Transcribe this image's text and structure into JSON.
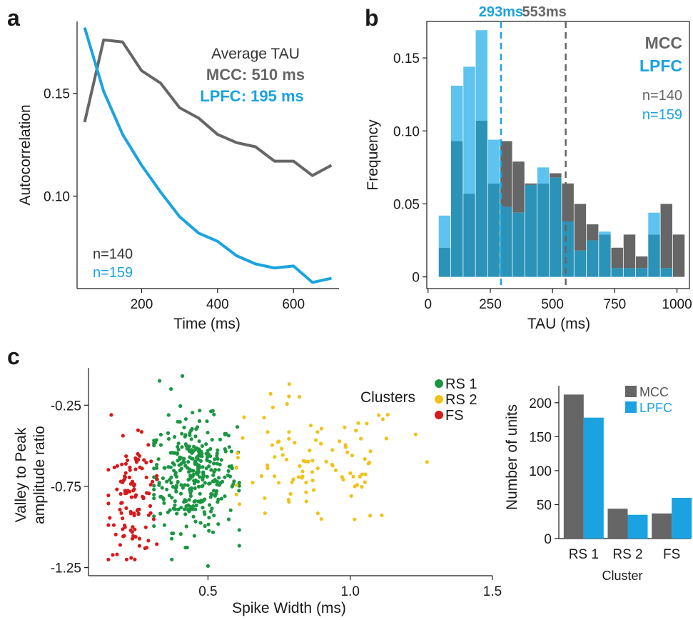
{
  "colors": {
    "mcc": "#666666",
    "lpfc": "#1aa3e0",
    "lpfc_hist": "#5ec3ef",
    "overlap": "#2b93b8",
    "rs1": "#1a9641",
    "rs2": "#f0c21a",
    "fs": "#d7191c",
    "axis": "#1a1a1a"
  },
  "chart_data": [
    {
      "panel": "a",
      "type": "line",
      "xlabel": "Time (ms)",
      "ylabel": "Autocorrelation",
      "xlim": [
        30,
        720
      ],
      "ylim": [
        0.055,
        0.185
      ],
      "xticks": [
        "200",
        "400",
        "600"
      ],
      "xtick_values": [
        200,
        400,
        600
      ],
      "yticks": [
        "0.10",
        "0.15"
      ],
      "ytick_values": [
        0.1,
        0.15
      ],
      "annotation_title": "Average TAU",
      "annotation_mcc": "MCC: 510 ms",
      "annotation_lpfc": "LPFC: 195 ms",
      "n_mcc": "n=140",
      "n_lpfc": "n=159",
      "series": [
        {
          "name": "MCC",
          "x": [
            50,
            100,
            150,
            200,
            250,
            300,
            350,
            400,
            450,
            500,
            550,
            600,
            650,
            700
          ],
          "values": [
            0.136,
            0.176,
            0.175,
            0.161,
            0.155,
            0.143,
            0.138,
            0.13,
            0.126,
            0.124,
            0.117,
            0.117,
            0.11,
            0.115
          ]
        },
        {
          "name": "LPFC",
          "x": [
            50,
            100,
            150,
            200,
            250,
            300,
            350,
            400,
            450,
            500,
            550,
            600,
            650,
            700
          ],
          "values": [
            0.182,
            0.151,
            0.13,
            0.115,
            0.102,
            0.09,
            0.082,
            0.078,
            0.071,
            0.067,
            0.065,
            0.066,
            0.058,
            0.06
          ]
        }
      ]
    },
    {
      "panel": "b",
      "type": "bar",
      "xlabel": "TAU (ms)",
      "ylabel": "Frequency",
      "xlim": [
        -5,
        1050
      ],
      "ylim": [
        -0.008,
        0.175
      ],
      "xticks": [
        "0",
        "250",
        "500",
        "750",
        "1000"
      ],
      "xtick_values": [
        0,
        250,
        500,
        750,
        1000
      ],
      "yticks": [
        "0",
        "0.05",
        "0.10",
        "0.15"
      ],
      "ytick_values": [
        0,
        0.05,
        0.1,
        0.15
      ],
      "bin_start": 43,
      "bin_width": 49.5,
      "legend_mcc": "MCC",
      "legend_lpfc": "LPFC",
      "n_mcc": "n=140",
      "n_lpfc": "n=159",
      "vline_lpfc_value": 293,
      "vline_lpfc_label": "293ms",
      "vline_mcc_value": 553,
      "vline_mcc_label": "553ms",
      "series": [
        {
          "name": "MCC",
          "values": [
            0.02,
            0.093,
            0.057,
            0.107,
            0.064,
            0.093,
            0.079,
            0.064,
            0.064,
            0.071,
            0.064,
            0.05,
            0.036,
            0.029,
            0.02,
            0.029,
            0.014,
            0.029,
            0.05,
            0.029
          ]
        },
        {
          "name": "LPFC",
          "values": [
            0.042,
            0.131,
            0.144,
            0.169,
            0.094,
            0.048,
            0.044,
            0.063,
            0.075,
            0.068,
            0.038,
            0.018,
            0.025,
            0.031,
            0.006,
            0.006,
            0.006,
            0.044,
            0.006,
            0.0
          ]
        }
      ]
    },
    {
      "panel": "c",
      "type": "scatter",
      "xlabel": "Spike Width (ms)",
      "ylabel_line1": "Valley to Peak",
      "ylabel_line2": "amplitude ratio",
      "xlim": [
        0.08,
        1.5
      ],
      "ylim": [
        -1.3,
        -0.02
      ],
      "xticks": [
        "0.5",
        "1.0",
        "1.5"
      ],
      "xtick_values": [
        0.5,
        1.0,
        1.5
      ],
      "yticks": [
        "-0.25",
        "-0.75",
        "-1.25"
      ],
      "ytick_values": [
        -0.25,
        -0.75,
        -1.25
      ],
      "legend_title": "Clusters",
      "series": [
        {
          "name": "RS 1",
          "cx": 0.45,
          "cy": -0.68,
          "sx": 0.075,
          "sy": 0.17,
          "xmin": 0.31,
          "xmax": 0.61,
          "n": 330
        },
        {
          "name": "RS 2",
          "cx": 0.86,
          "cy": -0.62,
          "sx": 0.17,
          "sy": 0.2,
          "xmin": 0.6,
          "xmax": 1.28,
          "n": 100
        },
        {
          "name": "FS",
          "cx": 0.24,
          "cy": -0.82,
          "sx": 0.045,
          "sy": 0.17,
          "xmin": 0.15,
          "xmax": 0.32,
          "n": 110
        }
      ],
      "extra_points": [
        {
          "series": "RS 1",
          "x": 0.33,
          "y": -0.1
        },
        {
          "series": "RS 1",
          "x": 0.41,
          "y": -0.07
        },
        {
          "series": "RS 1",
          "x": 0.5,
          "y": -1.24
        },
        {
          "series": "RS 1",
          "x": 0.37,
          "y": -0.15
        },
        {
          "series": "FS",
          "x": 0.23,
          "y": -1.19
        },
        {
          "series": "FS",
          "x": 0.16,
          "y": -0.31
        },
        {
          "series": "RS 2",
          "x": 1.23,
          "y": -0.43
        },
        {
          "series": "RS 2",
          "x": 1.27,
          "y": -0.6
        },
        {
          "series": "RS 2",
          "x": 1.07,
          "y": -0.93
        },
        {
          "series": "RS 2",
          "x": 0.72,
          "y": -0.18
        }
      ]
    },
    {
      "panel": "c-bar",
      "type": "bar",
      "xlabel": "Cluster",
      "ylabel": "Number of units",
      "ylim": [
        0,
        225
      ],
      "yticks": [
        "0",
        "50",
        "100",
        "150",
        "200"
      ],
      "ytick_values": [
        0,
        50,
        100,
        150,
        200
      ],
      "categories": [
        "RS 1",
        "RS 2",
        "FS"
      ],
      "series": [
        {
          "name": "MCC",
          "values": [
            212,
            44,
            37
          ]
        },
        {
          "name": "LPFC",
          "values": [
            178,
            35,
            60
          ]
        }
      ]
    }
  ],
  "panel_labels": {
    "a": "a",
    "b": "b",
    "c": "c"
  }
}
